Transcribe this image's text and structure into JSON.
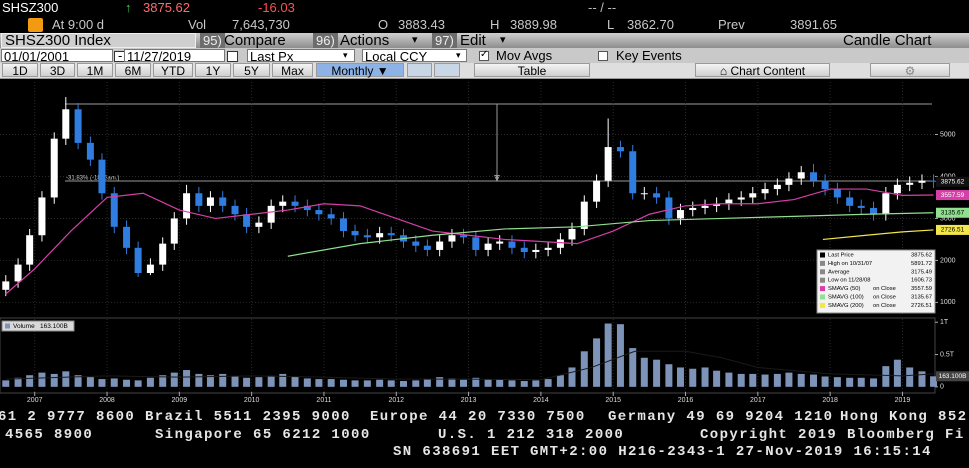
{
  "header": {
    "ticker": "SHSZ300",
    "time": "At 9:00 d",
    "last": "3875.62",
    "change": "-16.03",
    "bid_ask": "-- / --",
    "vol_label": "Vol",
    "vol": "7,643,730",
    "open_label": "O",
    "open": "3883.43",
    "high_label": "H",
    "high": "3889.98",
    "low_label": "L",
    "low": "3862.70",
    "prev_label": "Prev",
    "prev": "3891.65"
  },
  "toolbar": {
    "security": "SHSZ300 Index",
    "compare_num": "95)",
    "compare": "Compare",
    "actions_num": "96)",
    "actions": "Actions",
    "edit_num": "97)",
    "edit": "Edit",
    "chart_kind": "Candle Chart",
    "start_date": "01/01/2001",
    "end_date": "11/27/2019",
    "field": "Last Px",
    "currency": "Local CCY",
    "mov_avgs": "Mov Avgs",
    "key_events": "Key Events",
    "ranges": [
      "1D",
      "3D",
      "1M",
      "6M",
      "YTD",
      "1Y",
      "5Y",
      "Max"
    ],
    "period": "Monthly",
    "table": "Table",
    "chart_content": "Chart Content"
  },
  "chart_data": {
    "type": "candlestick",
    "up_color": "#ffffff",
    "down_color": "#2f7de0",
    "grid": true,
    "xlim": [
      2006.52,
      2019.45
    ],
    "xticks": [
      2007,
      2008,
      2009,
      2010,
      2011,
      2012,
      2013,
      2014,
      2015,
      2016,
      2017,
      2018,
      2019
    ],
    "ylim": [
      700,
      6250
    ],
    "yticks": [
      1000,
      2000,
      3000,
      4000,
      5000
    ],
    "x": [
      2006.6,
      2006.77,
      2006.93,
      2007.1,
      2007.27,
      2007.43,
      2007.6,
      2007.77,
      2007.93,
      2008.1,
      2008.27,
      2008.43,
      2008.6,
      2008.77,
      2008.93,
      2009.1,
      2009.27,
      2009.43,
      2009.6,
      2009.77,
      2009.93,
      2010.1,
      2010.27,
      2010.43,
      2010.6,
      2010.77,
      2010.93,
      2011.1,
      2011.27,
      2011.43,
      2011.6,
      2011.77,
      2011.93,
      2012.1,
      2012.27,
      2012.43,
      2012.6,
      2012.77,
      2012.93,
      2013.1,
      2013.27,
      2013.43,
      2013.6,
      2013.77,
      2013.93,
      2014.1,
      2014.27,
      2014.43,
      2014.6,
      2014.77,
      2014.93,
      2015.1,
      2015.27,
      2015.43,
      2015.6,
      2015.77,
      2015.93,
      2016.1,
      2016.27,
      2016.43,
      2016.6,
      2016.77,
      2016.93,
      2017.1,
      2017.27,
      2017.43,
      2017.6,
      2017.77,
      2017.93,
      2018.1,
      2018.27,
      2018.43,
      2018.6,
      2018.77,
      2018.93,
      2019.1,
      2019.27,
      2019.43
    ],
    "open": [
      1300,
      1500,
      1900,
      2600,
      3500,
      4900,
      5600,
      4800,
      4400,
      3600,
      2800,
      2300,
      1700,
      1900,
      2400,
      3000,
      3600,
      3300,
      3500,
      3300,
      3100,
      2800,
      2900,
      3300,
      3400,
      3300,
      3200,
      3100,
      3000,
      2700,
      2600,
      2550,
      2650,
      2600,
      2450,
      2350,
      2250,
      2450,
      2600,
      2550,
      2250,
      2400,
      2450,
      2300,
      2200,
      2250,
      2300,
      2500,
      2750,
      3400,
      3900,
      4700,
      4600,
      3600,
      3600,
      3500,
      3000,
      3200,
      3250,
      3300,
      3350,
      3450,
      3500,
      3600,
      3700,
      3800,
      3950,
      4100,
      3900,
      3700,
      3500,
      3300,
      3250,
      3100,
      3600,
      3800,
      3850,
      3900
    ],
    "high": [
      1650,
      2050,
      2750,
      3650,
      5050,
      5891.72,
      5750,
      4950,
      4550,
      3750,
      2950,
      2450,
      2050,
      2550,
      3150,
      3800,
      3750,
      3650,
      3650,
      3450,
      3250,
      3050,
      3450,
      3550,
      3550,
      3450,
      3350,
      3250,
      3150,
      2850,
      2750,
      2800,
      2800,
      2750,
      2600,
      2500,
      2600,
      2750,
      2750,
      2700,
      2550,
      2600,
      2600,
      2450,
      2400,
      2450,
      2650,
      2900,
      3550,
      4050,
      5380,
      4850,
      4750,
      3750,
      3750,
      3650,
      3350,
      3400,
      3450,
      3500,
      3600,
      3650,
      3750,
      3850,
      3950,
      4100,
      4250,
      4300,
      4050,
      3850,
      3650,
      3450,
      3400,
      3750,
      3950,
      4000,
      4050,
      4050
    ],
    "low": [
      1150,
      1350,
      1750,
      2450,
      3350,
      4750,
      4650,
      4250,
      3450,
      2650,
      2150,
      1606.73,
      1650,
      1750,
      2250,
      2850,
      3150,
      3150,
      3150,
      2950,
      2650,
      2650,
      2750,
      3150,
      3150,
      3050,
      2950,
      2850,
      2550,
      2450,
      2400,
      2400,
      2450,
      2300,
      2200,
      2100,
      2100,
      2300,
      2400,
      2100,
      2100,
      2250,
      2150,
      2050,
      2050,
      2100,
      2150,
      2350,
      2600,
      3250,
      3750,
      4450,
      3450,
      3450,
      3350,
      2850,
      2850,
      3050,
      3100,
      3150,
      3200,
      3300,
      3350,
      3450,
      3550,
      3650,
      3800,
      3750,
      3550,
      3350,
      3150,
      3100,
      2950,
      2950,
      3450,
      3650,
      3700,
      3725
    ],
    "close": [
      1500,
      1900,
      2600,
      3500,
      4900,
      5600,
      4800,
      4400,
      3600,
      2800,
      2300,
      1700,
      1900,
      2400,
      3000,
      3600,
      3300,
      3500,
      3300,
      3100,
      2800,
      2900,
      3300,
      3400,
      3300,
      3200,
      3100,
      3000,
      2700,
      2600,
      2550,
      2650,
      2600,
      2450,
      2350,
      2250,
      2450,
      2600,
      2550,
      2250,
      2400,
      2450,
      2300,
      2200,
      2250,
      2300,
      2500,
      2750,
      3400,
      3900,
      4700,
      4600,
      3600,
      3600,
      3500,
      3000,
      3200,
      3250,
      3300,
      3350,
      3450,
      3500,
      3600,
      3700,
      3800,
      3950,
      4100,
      3900,
      3700,
      3500,
      3300,
      3250,
      3100,
      3600,
      3800,
      3850,
      3900,
      3875.62
    ],
    "moving_averages": [
      {
        "name": "SMAVG (50)",
        "basis": "on Close",
        "color": "#d63fa8",
        "x": [
          2006.6,
          2007.0,
          2007.5,
          2008.0,
          2008.5,
          2009.0,
          2009.5,
          2010.0,
          2010.5,
          2011.0,
          2011.5,
          2012.0,
          2012.5,
          2013.0,
          2013.5,
          2014.0,
          2014.5,
          2015.0,
          2015.5,
          2016.0,
          2016.5,
          2017.0,
          2017.5,
          2018.0,
          2018.5,
          2019.0,
          2019.43
        ],
        "values": [
          1200,
          1800,
          2700,
          3500,
          3600,
          3200,
          3000,
          3100,
          3200,
          3350,
          3300,
          3000,
          2700,
          2600,
          2500,
          2450,
          2400,
          2700,
          3100,
          3300,
          3350,
          3350,
          3450,
          3700,
          3700,
          3550,
          3557.59
        ]
      },
      {
        "name": "SMAVG (100)",
        "basis": "on Close",
        "color": "#8fe08f",
        "x": [
          2010.5,
          2011.5,
          2012.5,
          2013.5,
          2014.5,
          2015.5,
          2016.5,
          2017.5,
          2018.5,
          2019.43
        ],
        "values": [
          2100,
          2400,
          2600,
          2750,
          2800,
          2950,
          3000,
          3050,
          3100,
          3135.67
        ]
      },
      {
        "name": "SMAVG (200)",
        "basis": "on Close",
        "color": "#f2e64a",
        "x": [
          2017.9,
          2018.5,
          2019.0,
          2019.43
        ],
        "values": [
          2500,
          2600,
          2680,
          2726.51
        ]
      }
    ],
    "stats": {
      "last_label": "Last Price",
      "high_label": "High on 10/31/07",
      "average_label": "Average",
      "average": 3175.49,
      "low_label": "Low on 11/28/08"
    },
    "annotation": "-31.83% (-1866am.)",
    "volume": {
      "type": "bar",
      "name": "Volume",
      "current_label": "163.100B",
      "color": "#7d93b8",
      "ylim": [
        -0.08,
        1.05
      ],
      "yticks": [
        0,
        {
          "value": 0.5,
          "label": "0.5T"
        },
        {
          "value": 1,
          "label": "1T"
        }
      ],
      "values": [
        0.1,
        0.14,
        0.18,
        0.22,
        0.2,
        0.24,
        0.18,
        0.15,
        0.12,
        0.13,
        0.11,
        0.1,
        0.14,
        0.18,
        0.22,
        0.26,
        0.2,
        0.18,
        0.2,
        0.16,
        0.14,
        0.15,
        0.17,
        0.2,
        0.16,
        0.13,
        0.12,
        0.12,
        0.11,
        0.1,
        0.1,
        0.11,
        0.1,
        0.09,
        0.1,
        0.12,
        0.15,
        0.13,
        0.11,
        0.14,
        0.12,
        0.11,
        0.1,
        0.09,
        0.1,
        0.12,
        0.18,
        0.3,
        0.55,
        0.75,
        0.98,
        0.97,
        0.6,
        0.45,
        0.42,
        0.35,
        0.3,
        0.28,
        0.3,
        0.25,
        0.22,
        0.2,
        0.2,
        0.19,
        0.2,
        0.22,
        0.2,
        0.19,
        0.16,
        0.15,
        0.14,
        0.14,
        0.13,
        0.32,
        0.42,
        0.3,
        0.24,
        0.1631
      ],
      "average": {
        "color": "#1a1a1a",
        "x": [
          2006.6,
          2008.0,
          2009.0,
          2010.0,
          2011.0,
          2012.0,
          2013.0,
          2014.0,
          2014.7,
          2015.3,
          2016.0,
          2016.5,
          2017.0,
          2018.0,
          2019.0,
          2019.43
        ],
        "values": [
          0.12,
          0.17,
          0.15,
          0.17,
          0.15,
          0.12,
          0.12,
          0.11,
          0.3,
          0.55,
          0.55,
          0.45,
          0.3,
          0.2,
          0.17,
          0.2
        ]
      }
    }
  },
  "footer": {
    "line1": [
      "61 2 9777 8600",
      "Brazil 5511 2395 9000",
      "Europe 44 20 7330 7500",
      "Germany 49 69 9204 1210",
      "Hong Kong 852"
    ],
    "line2": [
      "4565 8900",
      "Singapore 65 6212 1000",
      "U.S. 1 212 318 2000",
      "Copyright 2019 Bloomberg Fi"
    ],
    "line3": [
      "SN 638691 EET",
      "GMT+2:00 H216-2343-1 27-Nov-2019 16:15:14"
    ]
  }
}
